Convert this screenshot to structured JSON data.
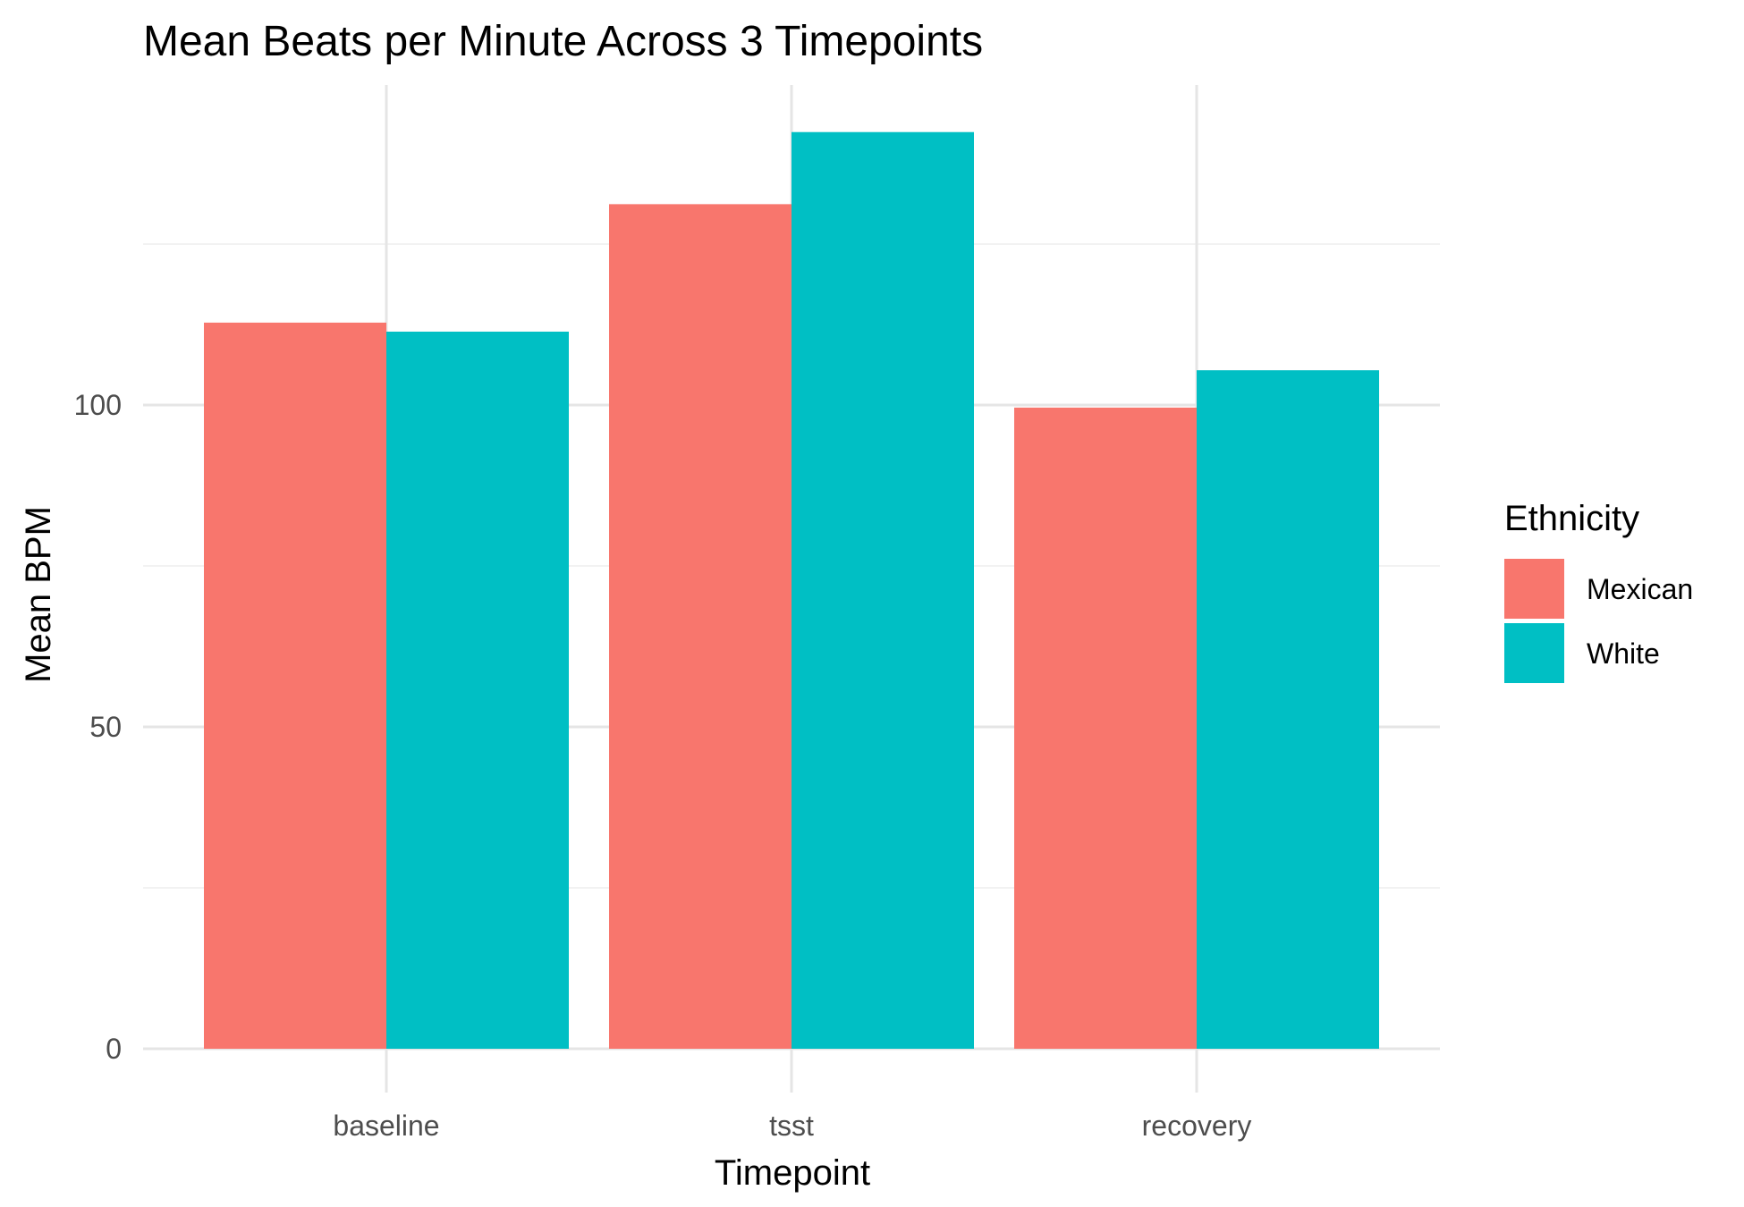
{
  "chart_data": {
    "type": "bar",
    "title": "Mean Beats per Minute Across 3 Timepoints",
    "xlabel": "Timepoint",
    "ylabel": "Mean BPM",
    "categories": [
      "baseline",
      "tsst",
      "recovery"
    ],
    "series": [
      {
        "name": "Mexican",
        "color": "#F8766D",
        "values": [
          112.8,
          131.2,
          99.6
        ]
      },
      {
        "name": "White",
        "color": "#00BFC4",
        "values": [
          111.4,
          142.4,
          105.4
        ]
      }
    ],
    "ylim": [
      0,
      150
    ],
    "yticks": [
      0,
      50,
      100
    ],
    "grid": true,
    "legend": {
      "title": "Ethnicity",
      "position": "right"
    }
  }
}
